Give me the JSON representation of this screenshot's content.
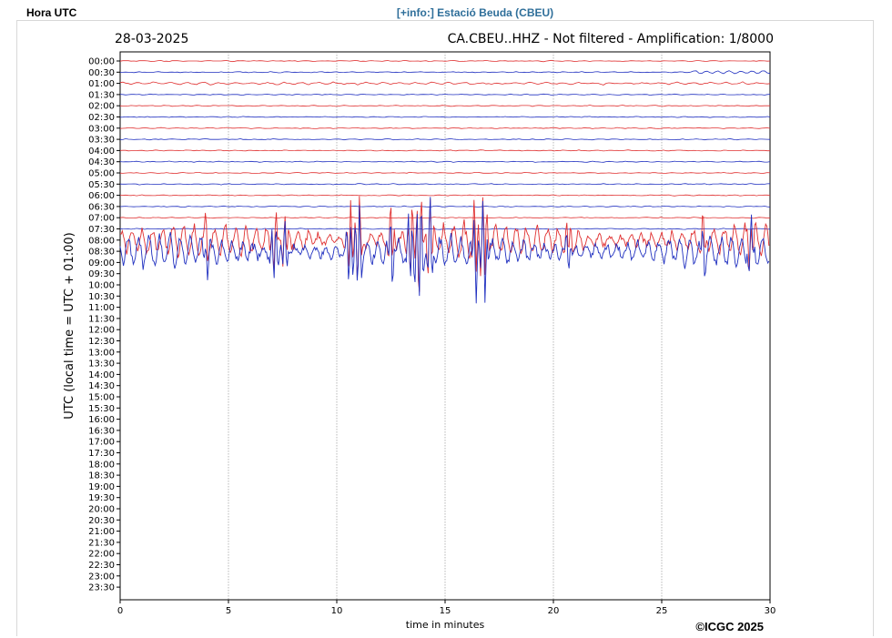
{
  "header": {
    "left_label": "Hora UTC",
    "link_label": "[+info:] Estació Beuda (CBEU)"
  },
  "chart_data": {
    "type": "line",
    "title_left": "28-03-2025",
    "title_right": "CA.CBEU..HHZ - Not filtered - Amplification: 1/8000",
    "xlabel": "time in minutes",
    "ylabel": "UTC (local time = UTC + 01:00)",
    "xlim": [
      0,
      30
    ],
    "x_ticks": [
      0,
      5,
      10,
      15,
      20,
      25,
      30
    ],
    "x_grid": true,
    "row_labels": [
      "00:00",
      "00:30",
      "01:00",
      "01:30",
      "02:00",
      "02:30",
      "03:00",
      "03:30",
      "04:00",
      "04:30",
      "05:00",
      "05:30",
      "06:00",
      "06:30",
      "07:00",
      "07:30",
      "08:00",
      "08:30",
      "09:00",
      "09:30",
      "10:00",
      "10:30",
      "11:00",
      "11:30",
      "12:00",
      "12:30",
      "13:00",
      "13:30",
      "14:00",
      "14:30",
      "15:00",
      "15:30",
      "16:00",
      "16:30",
      "17:00",
      "17:30",
      "18:00",
      "18:30",
      "19:00",
      "19:30",
      "20:00",
      "20:30",
      "21:00",
      "21:30",
      "22:00",
      "22:30",
      "23:00",
      "23:30"
    ],
    "trace_colors": [
      "#e03030",
      "#2030c0"
    ],
    "quiet_traces": 16,
    "noisy_traces": 2,
    "last_trace_end_minute": 30,
    "credit": "©ICGC 2025"
  }
}
